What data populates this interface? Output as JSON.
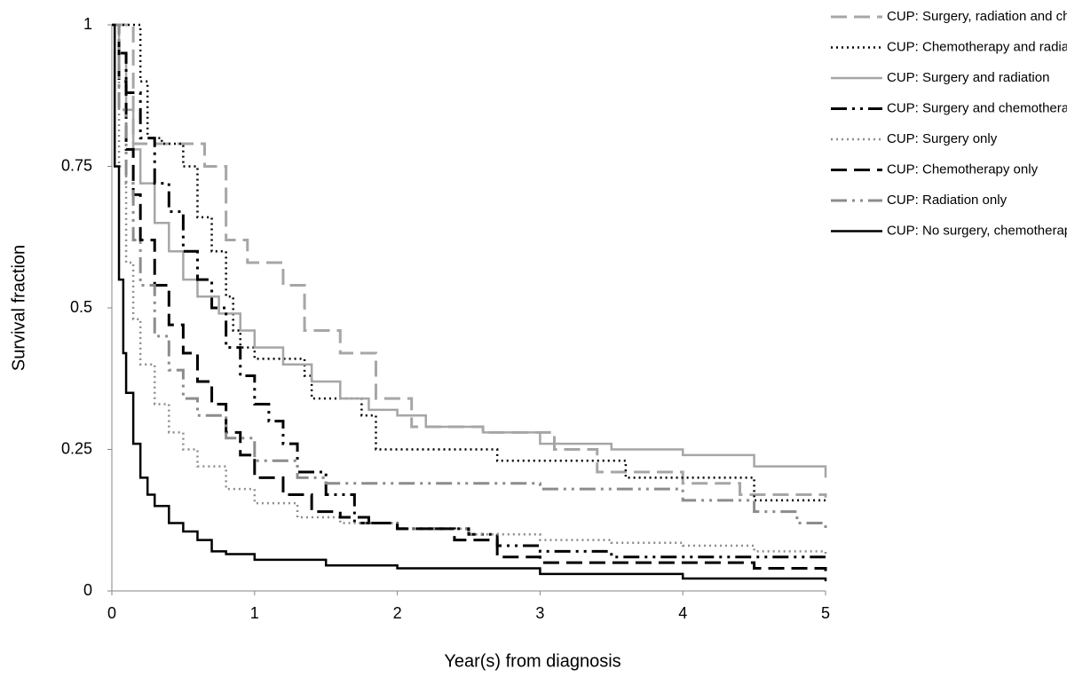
{
  "chart_data": {
    "type": "line",
    "step": true,
    "x_label": "Year(s) from diagnosis",
    "y_label": "Survival fraction",
    "xlim": [
      0,
      5
    ],
    "ylim": [
      0,
      1
    ],
    "xticks": [
      0,
      1,
      2,
      3,
      4,
      5
    ],
    "yticks": [
      0,
      0.25,
      0.5,
      0.75,
      1
    ],
    "series": [
      {
        "name": "CUP: Surgery, radiation and chemotherapy",
        "color": "#a6a6a6",
        "dash": "long-dash",
        "x": [
          0,
          0.15,
          0.65,
          0.8,
          0.95,
          1.2,
          1.35,
          1.6,
          1.85,
          2.1,
          2.6,
          3.1,
          3.4,
          4.0,
          4.4,
          5
        ],
        "values": [
          1,
          0.79,
          0.75,
          0.62,
          0.58,
          0.54,
          0.46,
          0.42,
          0.34,
          0.29,
          0.28,
          0.25,
          0.21,
          0.19,
          0.17,
          0.165
        ]
      },
      {
        "name": "CUP: Chemotherapy and radiation",
        "color": "#000000",
        "dash": "dotted",
        "x": [
          0,
          0.2,
          0.25,
          0.35,
          0.5,
          0.6,
          0.7,
          0.8,
          0.85,
          0.9,
          1.0,
          1.35,
          1.4,
          1.75,
          1.85,
          2.7,
          3.6,
          4.5,
          5
        ],
        "values": [
          1,
          0.9,
          0.8,
          0.79,
          0.75,
          0.66,
          0.6,
          0.52,
          0.46,
          0.43,
          0.41,
          0.38,
          0.34,
          0.31,
          0.25,
          0.23,
          0.2,
          0.16,
          0.16
        ]
      },
      {
        "name": "CUP: Surgery and radiation",
        "color": "#a6a6a6",
        "dash": "solid",
        "x": [
          0,
          0.05,
          0.1,
          0.15,
          0.2,
          0.3,
          0.4,
          0.5,
          0.6,
          0.75,
          0.9,
          1.0,
          1.2,
          1.4,
          1.6,
          1.8,
          2.0,
          2.2,
          2.6,
          3.0,
          3.5,
          4.0,
          4.5,
          5
        ],
        "values": [
          1,
          0.95,
          0.85,
          0.78,
          0.72,
          0.65,
          0.6,
          0.55,
          0.52,
          0.49,
          0.46,
          0.43,
          0.4,
          0.37,
          0.34,
          0.32,
          0.31,
          0.29,
          0.28,
          0.26,
          0.25,
          0.24,
          0.22,
          0.2
        ]
      },
      {
        "name": "CUP: Surgery and chemotherapy",
        "color": "#000000",
        "dash": "dash-dot-dot",
        "x": [
          0,
          0.05,
          0.1,
          0.2,
          0.3,
          0.4,
          0.5,
          0.6,
          0.7,
          0.8,
          0.9,
          1.0,
          1.1,
          1.2,
          1.3,
          1.5,
          1.7,
          2.0,
          2.5,
          2.7,
          3.0,
          3.5,
          5
        ],
        "values": [
          1,
          0.95,
          0.88,
          0.8,
          0.72,
          0.67,
          0.6,
          0.55,
          0.5,
          0.43,
          0.38,
          0.33,
          0.3,
          0.26,
          0.21,
          0.17,
          0.12,
          0.11,
          0.1,
          0.08,
          0.07,
          0.06,
          0.06
        ]
      },
      {
        "name": "CUP: Surgery only",
        "color": "#8c8c8c",
        "dash": "dotted",
        "x": [
          0,
          0.05,
          0.1,
          0.15,
          0.2,
          0.3,
          0.4,
          0.5,
          0.6,
          0.8,
          1.0,
          1.3,
          1.6,
          2.0,
          2.5,
          3.0,
          3.5,
          4.0,
          4.5,
          5
        ],
        "values": [
          1,
          0.75,
          0.58,
          0.48,
          0.4,
          0.33,
          0.28,
          0.25,
          0.22,
          0.18,
          0.155,
          0.13,
          0.12,
          0.11,
          0.1,
          0.09,
          0.085,
          0.08,
          0.07,
          0.06
        ]
      },
      {
        "name": "CUP: Chemotherapy only",
        "color": "#000000",
        "dash": "long-dash",
        "x": [
          0,
          0.05,
          0.1,
          0.15,
          0.2,
          0.3,
          0.4,
          0.5,
          0.6,
          0.7,
          0.8,
          0.9,
          1.0,
          1.2,
          1.4,
          1.6,
          1.8,
          2.0,
          2.4,
          2.7,
          3.0,
          3.6,
          4.5,
          5
        ],
        "values": [
          1,
          0.9,
          0.78,
          0.7,
          0.62,
          0.54,
          0.47,
          0.42,
          0.37,
          0.33,
          0.28,
          0.24,
          0.2,
          0.17,
          0.14,
          0.13,
          0.12,
          0.11,
          0.09,
          0.06,
          0.05,
          0.05,
          0.04,
          0.035
        ]
      },
      {
        "name": "CUP: Radiation only",
        "color": "#8c8c8c",
        "dash": "dash-dot-dot",
        "x": [
          0,
          0.05,
          0.1,
          0.15,
          0.2,
          0.3,
          0.4,
          0.5,
          0.6,
          0.8,
          1.0,
          1.3,
          1.5,
          2.0,
          3.0,
          3.5,
          4.0,
          4.5,
          4.8,
          5
        ],
        "values": [
          1,
          0.85,
          0.72,
          0.62,
          0.54,
          0.45,
          0.39,
          0.34,
          0.31,
          0.27,
          0.23,
          0.2,
          0.19,
          0.19,
          0.18,
          0.18,
          0.16,
          0.14,
          0.12,
          0.11
        ]
      },
      {
        "name": "CUP: No surgery, chemotherapy or surgery",
        "color": "#000000",
        "dash": "solid",
        "x": [
          0,
          0.02,
          0.05,
          0.08,
          0.1,
          0.15,
          0.2,
          0.25,
          0.3,
          0.4,
          0.5,
          0.6,
          0.7,
          0.8,
          1.0,
          1.5,
          2.0,
          3.0,
          4.0,
          5
        ],
        "values": [
          1,
          0.75,
          0.55,
          0.42,
          0.35,
          0.26,
          0.2,
          0.17,
          0.15,
          0.12,
          0.105,
          0.09,
          0.07,
          0.065,
          0.055,
          0.045,
          0.04,
          0.03,
          0.022,
          0.017
        ]
      }
    ]
  }
}
